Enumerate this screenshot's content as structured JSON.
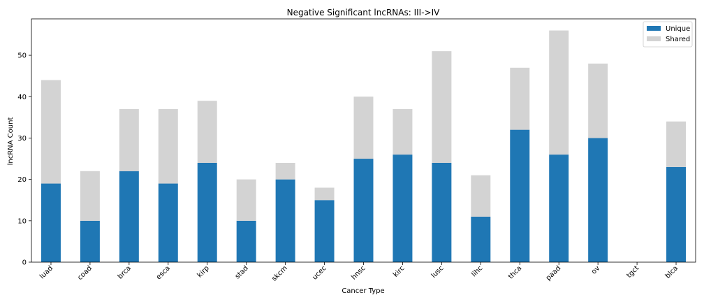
{
  "chart_data": {
    "type": "bar",
    "stacked": true,
    "title": "Negative Significant lncRNAs: III->IV",
    "xlabel": "Cancer Type",
    "ylabel": "lncRNA Count",
    "ylim": [
      0,
      58.8
    ],
    "yticks": [
      0,
      10,
      20,
      30,
      40,
      50
    ],
    "grid": false,
    "legend_position": "top-right",
    "categories": [
      "luad",
      "coad",
      "brca",
      "esca",
      "kirp",
      "stad",
      "skcm",
      "ucec",
      "hnsc",
      "kirc",
      "lusc",
      "lihc",
      "thca",
      "paad",
      "ov",
      "tgct",
      "blca"
    ],
    "series": [
      {
        "name": "Unique",
        "color": "#1f77b4",
        "values": [
          19,
          10,
          22,
          19,
          24,
          10,
          20,
          15,
          25,
          26,
          24,
          11,
          32,
          26,
          30,
          0,
          23
        ]
      },
      {
        "name": "Shared",
        "color": "#d3d3d3",
        "values": [
          25,
          12,
          15,
          18,
          15,
          10,
          4,
          3,
          15,
          11,
          27,
          10,
          15,
          30,
          18,
          0,
          11
        ]
      }
    ]
  }
}
